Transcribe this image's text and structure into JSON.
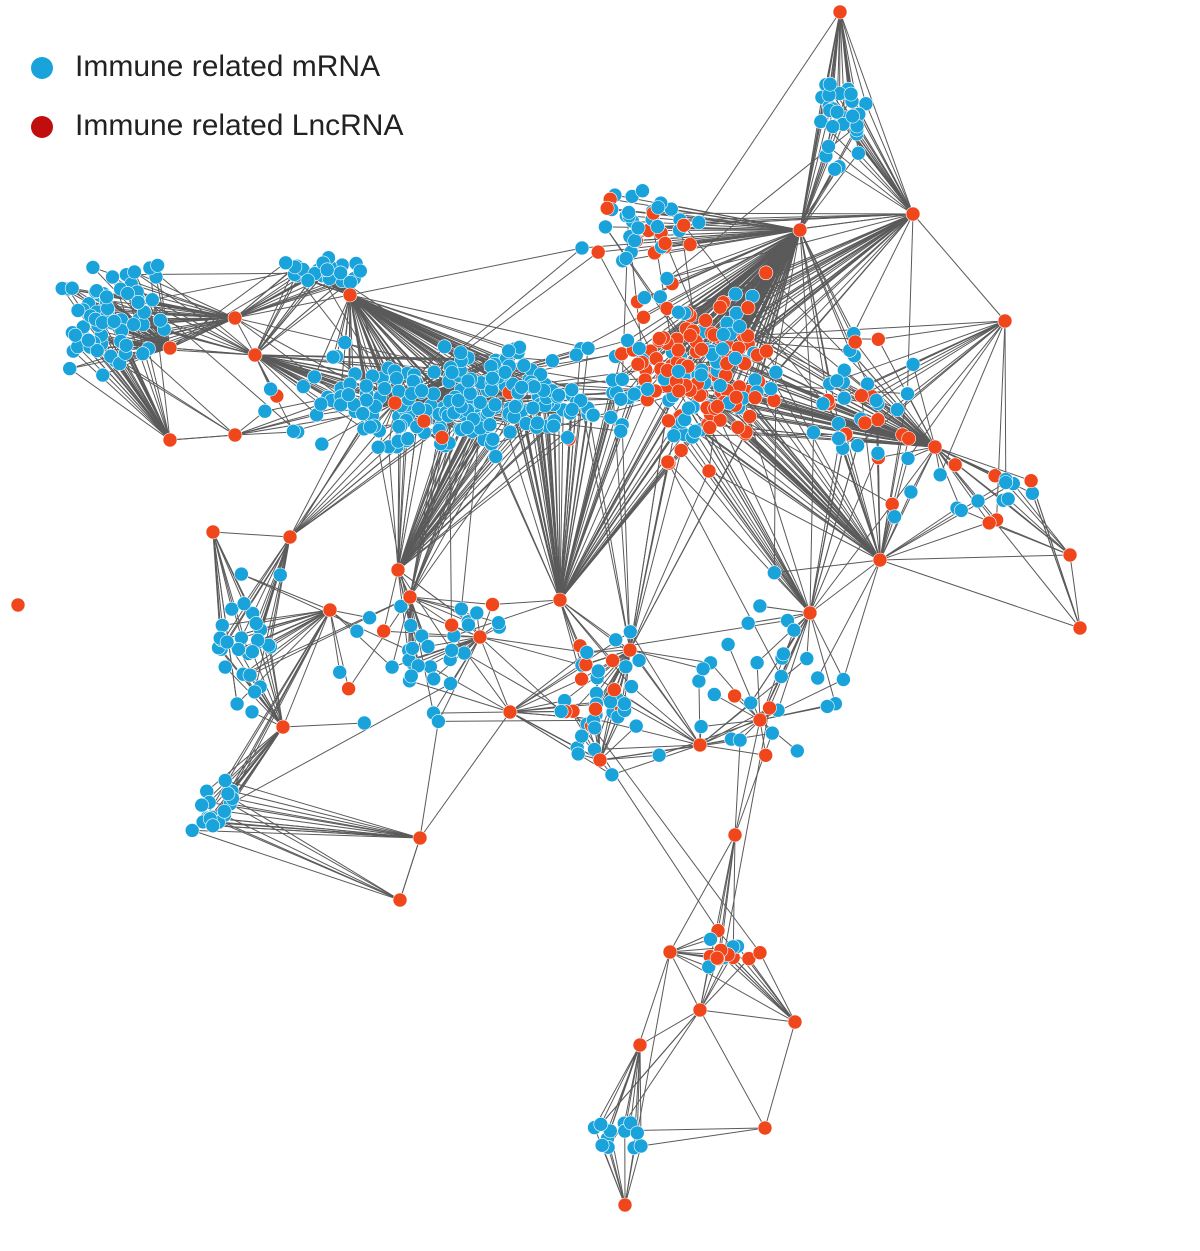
{
  "legend": {
    "items": [
      {
        "label": "Immune related mRNA",
        "color": "#1aa3db"
      },
      {
        "label": "Immune related LncRNA",
        "color": "#c00d0d"
      }
    ]
  }
}
